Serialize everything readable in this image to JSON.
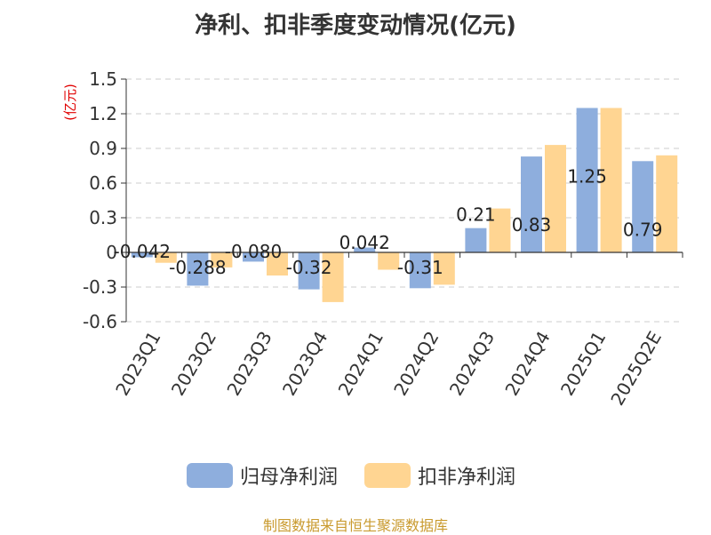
{
  "chart_data": {
    "type": "bar",
    "title": "净利、扣非季度变动情况(亿元)",
    "xlabel": "",
    "ylabel": "(亿元)",
    "categories": [
      "2023Q1",
      "2023Q2",
      "2023Q3",
      "2023Q4",
      "2024Q1",
      "2024Q2",
      "2024Q3",
      "2024Q4",
      "2025Q1",
      "2025Q2E"
    ],
    "series": [
      {
        "name": "归母净利润",
        "color": "#8eaedd",
        "values": [
          -0.042,
          -0.288,
          -0.08,
          -0.32,
          0.042,
          -0.31,
          0.21,
          0.83,
          1.25,
          0.79
        ],
        "labels": [
          "-0.042",
          "-0.288",
          "-0.080",
          "-0.32",
          "0.042",
          "-0.31",
          "0.21",
          "0.83",
          "1.25",
          "0.79"
        ]
      },
      {
        "name": "扣非净利润",
        "color": "#ffd592",
        "values": [
          -0.09,
          -0.13,
          -0.2,
          -0.43,
          -0.15,
          -0.28,
          0.38,
          0.93,
          1.25,
          0.84
        ]
      }
    ],
    "ylim": [
      -0.6,
      1.5
    ],
    "yticks": [
      -0.6,
      -0.3,
      0,
      0.3,
      0.6,
      0.9,
      1.2,
      1.5
    ],
    "ytick_labels": [
      "-0.6",
      "-0.3",
      "0",
      "0.3",
      "0.6",
      "0.9",
      "1.2",
      "1.5"
    ],
    "grid": true,
    "legend_position": "bottom-center"
  },
  "footer": {
    "source": "制图数据来自恒生聚源数据库"
  }
}
